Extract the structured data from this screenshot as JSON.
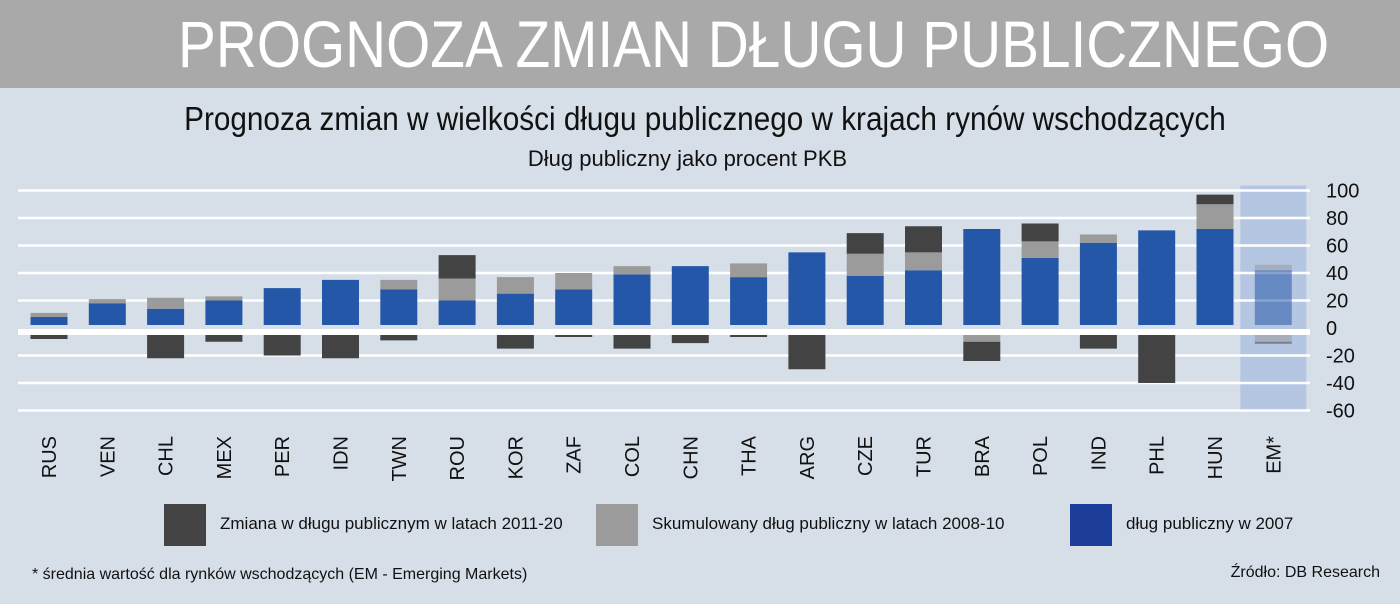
{
  "banner": {
    "title": "PROGNOZA ZMIAN DŁUGU PUBLICZNEGO"
  },
  "footnote": "* średnia wartość dla rynków wschodzących (EM - Emerging Markets)",
  "source": "Źródło: DB Research",
  "legend": [
    {
      "label": "Zmiana w długu publicznym w latach 2011-20",
      "color": "#434343"
    },
    {
      "label": "Skumulowany dług publiczny w latach 2008-10",
      "color": "#9b9b9b"
    },
    {
      "label": "dług publiczny w 2007",
      "color": "#1c3e99"
    }
  ],
  "chart_data": {
    "type": "bar",
    "stacked": true,
    "title": "Prognoza zmian w wielkości długu publicznego w krajach rynów wschodzących",
    "subtitle": "Dług publiczny jako procent PKB",
    "xlabel": "",
    "ylabel": "",
    "ylim": [
      -60,
      100
    ],
    "yticks": [
      100,
      80,
      60,
      40,
      20,
      0,
      -20,
      -40,
      -60
    ],
    "y_axis_position": "right",
    "grid": true,
    "legend_position": "bottom",
    "categories": [
      "RUS",
      "VEN",
      "CHL",
      "MEX",
      "PER",
      "IDN",
      "TWN",
      "ROU",
      "KOR",
      "ZAF",
      "COL",
      "CHN",
      "THA",
      "ARG",
      "CZE",
      "TUR",
      "BRA",
      "POL",
      "IND",
      "PHL",
      "HUN",
      "EM*"
    ],
    "highlighted_category": "EM*",
    "series": [
      {
        "name": "dług publiczny w 2007",
        "color": "#2457a8",
        "values": [
          8,
          18,
          14,
          20,
          29,
          35,
          28,
          20,
          25,
          28,
          39,
          45,
          37,
          55,
          38,
          42,
          72,
          51,
          62,
          71,
          72,
          42
        ]
      },
      {
        "name": "Skumulowany dług publiczny w latach 2008-10",
        "color": "#9b9b9b",
        "values": [
          3,
          3,
          8,
          3,
          0,
          0,
          7,
          16,
          12,
          12,
          6,
          0,
          10,
          0,
          16,
          13,
          0,
          12,
          6,
          0,
          18,
          4
        ]
      },
      {
        "name": "Zmiana w długu publicznym w latach 2011-20",
        "color": "#434343",
        "values": [
          -8,
          0,
          -22,
          -10,
          -20,
          -22,
          -9,
          17,
          -15,
          -4,
          -15,
          -11,
          -4,
          -30,
          15,
          19,
          -24,
          13,
          -15,
          -40,
          7,
          -11
        ]
      }
    ],
    "negative_gray": {
      "BRA": -10,
      "EM*": -10
    }
  }
}
